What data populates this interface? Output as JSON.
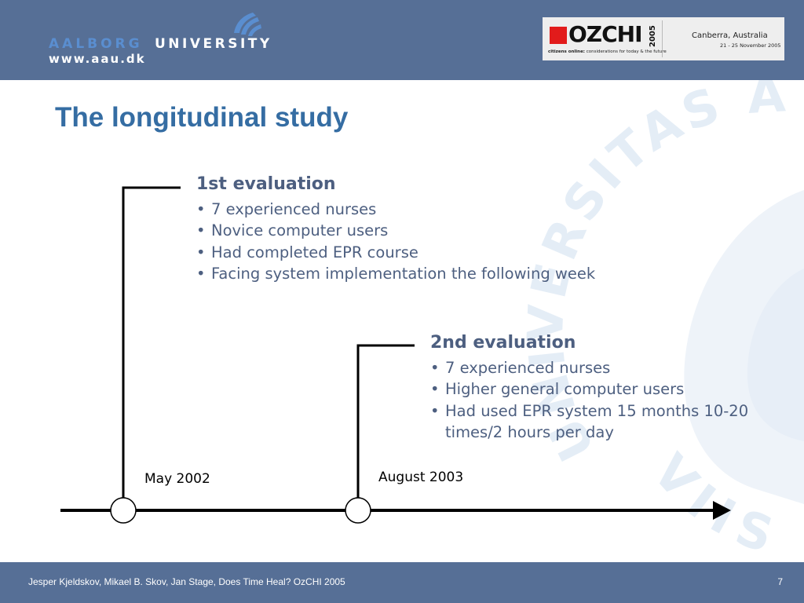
{
  "header": {
    "university_name_part1": "AALBORG",
    "university_name_part2": "UNIVERSITY",
    "university_url": "www.aau.dk",
    "conference": {
      "name": "OZCHI",
      "year": "2005",
      "tagline_bold": "citizens online:",
      "tagline_rest": " considerations for today & the future",
      "city": "Canberra, Australia",
      "dates": "21 - 25 November 2005"
    }
  },
  "watermark": {
    "text": "UNIVERSITAS AALBORGIENSIS",
    "text_lower": "VIIS N"
  },
  "slide": {
    "title": "The longitudinal study"
  },
  "evaluations": [
    {
      "title": "1st evaluation",
      "date": "May 2002",
      "bullets": [
        "7 experienced nurses",
        "Novice computer users",
        "Had completed EPR course",
        "Facing system implementation the following week"
      ]
    },
    {
      "title": "2nd evaluation",
      "date": "August 2003",
      "bullets": [
        "7 experienced nurses",
        "Higher general computer users",
        "Had used EPR system 15 months 10-20 times/2 hours per day"
      ]
    }
  ],
  "footer": {
    "citation": "Jesper Kjeldskov, Mikael B. Skov, Jan Stage, Does Time Heal? OzCHI 2005",
    "page_number": "7"
  },
  "colors": {
    "header_bar": "#566f96",
    "title": "#356da3",
    "body_text": "#4d5f80",
    "aalborg_text": "#5a8ed0",
    "watermark": "#e4edf6",
    "ozchi_red": "#e21b1b"
  },
  "icons": {
    "aau_logo": "aau-wave-logo-icon",
    "ozchi_logo": "ozchi-red-square-icon",
    "timeline_arrow": "arrow-right-icon",
    "timeline_milestone": "circle-milestone-icon"
  }
}
